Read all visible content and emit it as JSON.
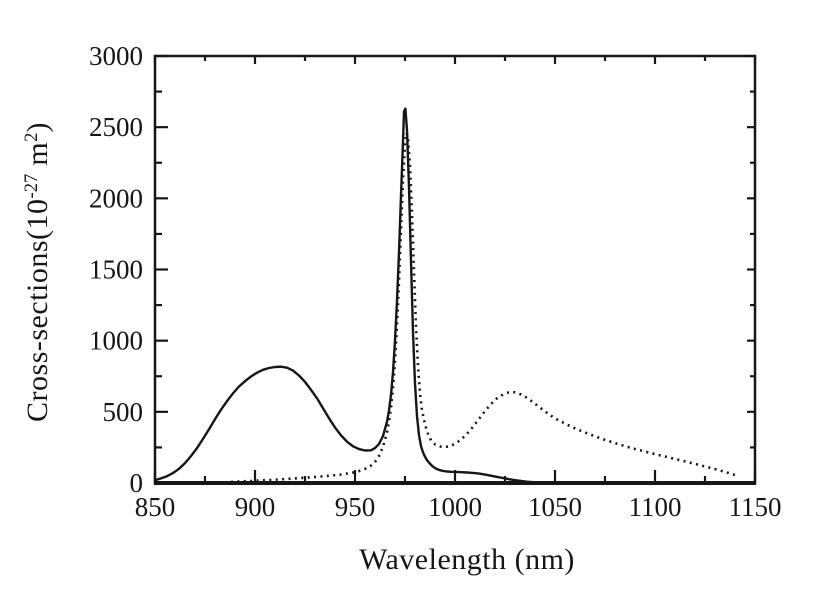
{
  "figure": {
    "background": "#ffffff",
    "ink_color": "#161616"
  },
  "chart_data": {
    "type": "line",
    "title": "",
    "xlabel": "Wavelength (nm)",
    "ylabel": "Cross-sections(10⁻²⁷ m²)",
    "ylabel_parts": {
      "prefix": "Cross-sections(10",
      "exponent": "-27",
      "unit": " m",
      "unit_exponent": "2",
      "suffix": ")"
    },
    "xlim": [
      850,
      1150
    ],
    "ylim": [
      0,
      3000
    ],
    "x_major_ticks": [
      850,
      900,
      950,
      1000,
      1050,
      1100,
      1150
    ],
    "x_minor_step": 25,
    "y_major_ticks": [
      0,
      500,
      1000,
      1500,
      2000,
      2500,
      3000
    ],
    "y_minor_step": 250,
    "grid": false,
    "legend": "none",
    "series": [
      {
        "name": "solid-curve",
        "style": "solid",
        "points": [
          [
            850,
            20
          ],
          [
            853,
            32
          ],
          [
            856,
            48
          ],
          [
            859,
            70
          ],
          [
            862,
            100
          ],
          [
            865,
            140
          ],
          [
            868,
            190
          ],
          [
            871,
            245
          ],
          [
            874,
            310
          ],
          [
            877,
            378
          ],
          [
            880,
            448
          ],
          [
            883,
            515
          ],
          [
            886,
            575
          ],
          [
            889,
            630
          ],
          [
            892,
            678
          ],
          [
            895,
            715
          ],
          [
            898,
            748
          ],
          [
            901,
            775
          ],
          [
            904,
            795
          ],
          [
            907,
            808
          ],
          [
            910,
            815
          ],
          [
            913,
            817
          ],
          [
            916,
            810
          ],
          [
            919,
            790
          ],
          [
            922,
            755
          ],
          [
            925,
            710
          ],
          [
            928,
            655
          ],
          [
            931,
            595
          ],
          [
            934,
            525
          ],
          [
            937,
            455
          ],
          [
            940,
            390
          ],
          [
            943,
            335
          ],
          [
            946,
            290
          ],
          [
            949,
            258
          ],
          [
            952,
            238
          ],
          [
            955,
            228
          ],
          [
            958,
            230
          ],
          [
            960,
            245
          ],
          [
            962,
            275
          ],
          [
            964,
            330
          ],
          [
            966,
            430
          ],
          [
            967,
            510
          ],
          [
            968,
            620
          ],
          [
            969,
            780
          ],
          [
            970,
            1000
          ],
          [
            971,
            1280
          ],
          [
            972,
            1620
          ],
          [
            973,
            2020
          ],
          [
            974,
            2400
          ],
          [
            974.5,
            2610
          ],
          [
            975.2,
            2630
          ],
          [
            976,
            2480
          ],
          [
            977,
            2080
          ],
          [
            978,
            1560
          ],
          [
            979,
            1060
          ],
          [
            980,
            700
          ],
          [
            981,
            470
          ],
          [
            982,
            335
          ],
          [
            983,
            260
          ],
          [
            984,
            215
          ],
          [
            985,
            185
          ],
          [
            986,
            160
          ],
          [
            987,
            143
          ],
          [
            988,
            128
          ],
          [
            989,
            115
          ],
          [
            990,
            105
          ],
          [
            992,
            92
          ],
          [
            994,
            85
          ],
          [
            996,
            81
          ],
          [
            998,
            79
          ],
          [
            1000,
            78
          ],
          [
            1003,
            76
          ],
          [
            1006,
            74
          ],
          [
            1009,
            71
          ],
          [
            1012,
            66
          ],
          [
            1015,
            59
          ],
          [
            1018,
            51
          ],
          [
            1021,
            43
          ],
          [
            1024,
            35
          ],
          [
            1027,
            27
          ],
          [
            1030,
            20
          ],
          [
            1033,
            14
          ],
          [
            1036,
            9
          ],
          [
            1040,
            5
          ],
          [
            1044,
            2
          ],
          [
            1048,
            1
          ],
          [
            1052,
            0
          ]
        ]
      },
      {
        "name": "dotted-curve",
        "style": "dotted",
        "points": [
          [
            888,
            8
          ],
          [
            893,
            11
          ],
          [
            898,
            14
          ],
          [
            903,
            18
          ],
          [
            908,
            22
          ],
          [
            913,
            26
          ],
          [
            918,
            30
          ],
          [
            923,
            35
          ],
          [
            928,
            40
          ],
          [
            933,
            46
          ],
          [
            938,
            52
          ],
          [
            943,
            60
          ],
          [
            947,
            68
          ],
          [
            950,
            76
          ],
          [
            953,
            88
          ],
          [
            956,
            105
          ],
          [
            958,
            122
          ],
          [
            960,
            148
          ],
          [
            962,
            190
          ],
          [
            964,
            255
          ],
          [
            966,
            355
          ],
          [
            967,
            430
          ],
          [
            968,
            530
          ],
          [
            969,
            670
          ],
          [
            970,
            860
          ],
          [
            971,
            1110
          ],
          [
            972,
            1420
          ],
          [
            973,
            1780
          ],
          [
            974,
            2130
          ],
          [
            975,
            2380
          ],
          [
            975.8,
            2460
          ],
          [
            976.5,
            2420
          ],
          [
            977.5,
            2230
          ],
          [
            978.5,
            1890
          ],
          [
            979.5,
            1480
          ],
          [
            980.5,
            1100
          ],
          [
            981.5,
            820
          ],
          [
            982.5,
            630
          ],
          [
            983.5,
            510
          ],
          [
            985,
            410
          ],
          [
            986.5,
            345
          ],
          [
            988,
            300
          ],
          [
            990,
            272
          ],
          [
            992,
            258
          ],
          [
            994,
            253
          ],
          [
            996,
            255
          ],
          [
            998,
            262
          ],
          [
            1000,
            275
          ],
          [
            1003,
            305
          ],
          [
            1006,
            345
          ],
          [
            1009,
            395
          ],
          [
            1012,
            450
          ],
          [
            1015,
            505
          ],
          [
            1018,
            555
          ],
          [
            1021,
            595
          ],
          [
            1024,
            622
          ],
          [
            1027,
            638
          ],
          [
            1030,
            637
          ],
          [
            1033,
            622
          ],
          [
            1036,
            598
          ],
          [
            1039,
            568
          ],
          [
            1042,
            535
          ],
          [
            1045,
            503
          ],
          [
            1048,
            473
          ],
          [
            1051,
            447
          ],
          [
            1055,
            417
          ],
          [
            1059,
            390
          ],
          [
            1063,
            366
          ],
          [
            1067,
            344
          ],
          [
            1071,
            323
          ],
          [
            1075,
            303
          ],
          [
            1080,
            280
          ],
          [
            1085,
            259
          ],
          [
            1090,
            239
          ],
          [
            1095,
            221
          ],
          [
            1100,
            203
          ],
          [
            1105,
            186
          ],
          [
            1110,
            169
          ],
          [
            1115,
            152
          ],
          [
            1120,
            134
          ],
          [
            1125,
            116
          ],
          [
            1130,
            98
          ],
          [
            1134,
            82
          ],
          [
            1138,
            65
          ],
          [
            1141,
            52
          ]
        ]
      }
    ]
  }
}
